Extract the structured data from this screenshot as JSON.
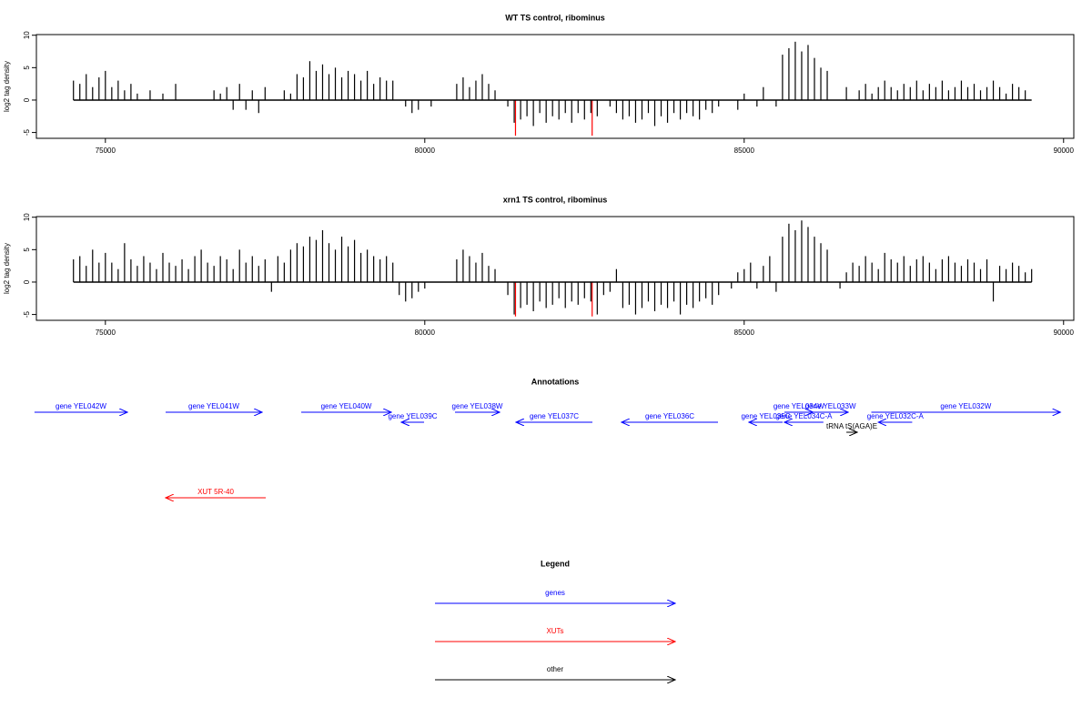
{
  "chart_data": [
    {
      "type": "spike",
      "title": "WT TS control, ribominus",
      "y_label": "log2 tag density",
      "xlim": [
        73920,
        90160
      ],
      "xticks": [
        75000,
        80000,
        85000,
        90000
      ],
      "ylim": [
        -5.9,
        10.1
      ],
      "yticks": [
        -5,
        0,
        5,
        10
      ],
      "x": [
        74500,
        74600,
        74700,
        74800,
        74900,
        75000,
        75100,
        75200,
        75300,
        75400,
        75500,
        75600,
        75700,
        75800,
        75900,
        76000,
        76100,
        76200,
        76300,
        76400,
        76500,
        76600,
        76700,
        76800,
        76900,
        77000,
        77100,
        77200,
        77300,
        77400,
        77500,
        77600,
        77700,
        77800,
        77900,
        78000,
        78100,
        78200,
        78300,
        78400,
        78500,
        78600,
        78700,
        78800,
        78900,
        79000,
        79100,
        79200,
        79300,
        79400,
        79500,
        79600,
        79700,
        79800,
        79900,
        80000,
        80100,
        80200,
        80300,
        80400,
        80500,
        80600,
        80700,
        80800,
        80900,
        81000,
        81100,
        81200,
        81300,
        81400,
        81500,
        81600,
        81700,
        81800,
        81900,
        82000,
        82100,
        82200,
        82300,
        82400,
        82500,
        82600,
        82700,
        82800,
        82900,
        83000,
        83100,
        83200,
        83300,
        83400,
        83500,
        83600,
        83700,
        83800,
        83900,
        84000,
        84100,
        84200,
        84300,
        84400,
        84500,
        84600,
        84700,
        84800,
        84900,
        85000,
        85100,
        85200,
        85300,
        85400,
        85500,
        85600,
        85700,
        85800,
        85900,
        86000,
        86100,
        86200,
        86300,
        86400,
        86500,
        86600,
        86700,
        86800,
        86900,
        87000,
        87100,
        87200,
        87300,
        87400,
        87500,
        87600,
        87700,
        87800,
        87900,
        88000,
        88100,
        88200,
        88300,
        88400,
        88500,
        88600,
        88700,
        88800,
        88900,
        89000,
        89100,
        89200,
        89300,
        89400,
        89500
      ],
      "series": [
        {
          "color": "#000000",
          "values": [
            3,
            2.5,
            4,
            2,
            3.5,
            4.5,
            2,
            3,
            1.5,
            2.5,
            1,
            null,
            1.5,
            null,
            1,
            null,
            2.5,
            null,
            null,
            null,
            null,
            null,
            1.5,
            1,
            2,
            -1.5,
            2.5,
            -1.5,
            1.5,
            -2,
            2,
            null,
            null,
            1.5,
            1,
            4,
            3.5,
            6,
            4.5,
            5.5,
            4,
            5,
            3.5,
            4.5,
            4,
            3,
            4.5,
            2.5,
            3.5,
            3,
            3,
            null,
            -1,
            -2,
            -1.5,
            null,
            -1,
            null,
            null,
            null,
            2.5,
            3.5,
            2,
            3,
            4,
            2.5,
            1.5,
            null,
            -1,
            -3.5,
            -3,
            -2.5,
            -4,
            -2,
            -3.5,
            -2.5,
            -3,
            -2,
            -3.5,
            -2,
            -3,
            -2,
            -2.5,
            null,
            -1,
            -2,
            -3,
            -2.5,
            -3.5,
            -3,
            -2,
            -4,
            -2.5,
            -3.5,
            -2,
            -3,
            -2,
            -2.5,
            -3,
            -1.5,
            -2,
            -1,
            null,
            null,
            -1.5,
            1,
            null,
            -1,
            2,
            null,
            -1,
            7,
            8,
            9,
            7.5,
            8.5,
            6.5,
            5,
            4.5,
            null,
            null,
            2,
            null,
            1.5,
            2.5,
            1,
            2,
            3,
            2,
            1.5,
            2.5,
            2,
            3,
            1.5,
            2.5,
            2,
            3,
            1.5,
            2,
            3,
            2,
            2.5,
            1.5,
            2,
            3,
            2,
            1,
            2.5,
            2,
            1.5,
            null
          ]
        },
        {
          "color": "#ff0000",
          "x": [
            81420,
            82620
          ],
          "values": [
            -5.5,
            -5.5
          ]
        }
      ]
    },
    {
      "type": "spike",
      "title": "xrn1 TS control, ribominus",
      "y_label": "log2 tag density",
      "xlim": [
        73920,
        90160
      ],
      "xticks": [
        75000,
        80000,
        85000,
        90000
      ],
      "ylim": [
        -5.9,
        10.1
      ],
      "yticks": [
        -5,
        0,
        5,
        10
      ],
      "x": [
        74500,
        74600,
        74700,
        74800,
        74900,
        75000,
        75100,
        75200,
        75300,
        75400,
        75500,
        75600,
        75700,
        75800,
        75900,
        76000,
        76100,
        76200,
        76300,
        76400,
        76500,
        76600,
        76700,
        76800,
        76900,
        77000,
        77100,
        77200,
        77300,
        77400,
        77500,
        77600,
        77700,
        77800,
        77900,
        78000,
        78100,
        78200,
        78300,
        78400,
        78500,
        78600,
        78700,
        78800,
        78900,
        79000,
        79100,
        79200,
        79300,
        79400,
        79500,
        79600,
        79700,
        79800,
        79900,
        80000,
        80100,
        80200,
        80300,
        80400,
        80500,
        80600,
        80700,
        80800,
        80900,
        81000,
        81100,
        81200,
        81300,
        81400,
        81500,
        81600,
        81700,
        81800,
        81900,
        82000,
        82100,
        82200,
        82300,
        82400,
        82500,
        82600,
        82700,
        82800,
        82900,
        83000,
        83100,
        83200,
        83300,
        83400,
        83500,
        83600,
        83700,
        83800,
        83900,
        84000,
        84100,
        84200,
        84300,
        84400,
        84500,
        84600,
        84700,
        84800,
        84900,
        85000,
        85100,
        85200,
        85300,
        85400,
        85500,
        85600,
        85700,
        85800,
        85900,
        86000,
        86100,
        86200,
        86300,
        86400,
        86500,
        86600,
        86700,
        86800,
        86900,
        87000,
        87100,
        87200,
        87300,
        87400,
        87500,
        87600,
        87700,
        87800,
        87900,
        88000,
        88100,
        88200,
        88300,
        88400,
        88500,
        88600,
        88700,
        88800,
        88900,
        89000,
        89100,
        89200,
        89300,
        89400,
        89500
      ],
      "series": [
        {
          "color": "#000000",
          "values": [
            3.5,
            4,
            2.5,
            5,
            3,
            4.5,
            3,
            2,
            6,
            3.5,
            2.5,
            4,
            3,
            2,
            4.5,
            3,
            2.5,
            3.5,
            2,
            4,
            5,
            3,
            2.5,
            4,
            3.5,
            2,
            5,
            3,
            4,
            2.5,
            3.5,
            -1.5,
            4,
            3,
            5,
            6,
            5.5,
            7,
            6.5,
            8,
            6,
            5,
            7,
            5.5,
            6.5,
            4.5,
            5,
            4,
            3.5,
            4,
            3,
            -2,
            -3,
            -2.5,
            -1.5,
            -1,
            null,
            null,
            null,
            null,
            3.5,
            5,
            4,
            3,
            4.5,
            2.5,
            2,
            null,
            -2,
            -5,
            -4,
            -3.5,
            -4.5,
            -3,
            -4,
            -3.5,
            -2.5,
            -4,
            -3,
            -3.5,
            -2.5,
            -3,
            -5,
            -2,
            -1.5,
            2,
            -4,
            -3.5,
            -5,
            -4,
            -3,
            -4.5,
            -3.5,
            -4,
            -3,
            -5,
            -3.5,
            -4,
            -3,
            -2.5,
            -3.5,
            -2,
            null,
            -1,
            1.5,
            2,
            3,
            -1,
            2.5,
            4,
            -1.5,
            7,
            9,
            8,
            9.5,
            8.5,
            7,
            6,
            5,
            null,
            -1,
            1.5,
            3,
            2.5,
            4,
            3,
            2,
            4.5,
            3.5,
            3,
            4,
            2.5,
            3.5,
            4,
            3,
            2,
            3.5,
            4,
            3,
            2.5,
            3.5,
            3,
            2,
            3.5,
            -3,
            2.5,
            2,
            3,
            2.5,
            1.5,
            2
          ]
        },
        {
          "color": "#ff0000",
          "x": [
            81420,
            82620
          ],
          "values": [
            -5.3,
            -5.3
          ]
        }
      ]
    }
  ],
  "annotations": {
    "title": "Annotations",
    "items": [
      {
        "label": "gene YEL042W",
        "start": 73890,
        "end": 75345,
        "strand": "+",
        "color": "#0000ff",
        "row": 0
      },
      {
        "label": "gene YEL041W",
        "start": 75943,
        "end": 77453,
        "strand": "+",
        "color": "#0000ff",
        "row": 0
      },
      {
        "label": "gene YEL040W",
        "start": 78066,
        "end": 79476,
        "strand": "+",
        "color": "#0000ff",
        "row": 0
      },
      {
        "label": "gene YEL039C",
        "start": 79633,
        "end": 79989,
        "strand": "-",
        "color": "#0000ff",
        "row": 1
      },
      {
        "label": "gene YEL038W",
        "start": 80473,
        "end": 81171,
        "strand": "+",
        "color": "#0000ff",
        "row": 0
      },
      {
        "label": "gene YEL037C",
        "start": 81428,
        "end": 82624,
        "strand": "-",
        "color": "#0000ff",
        "row": 1
      },
      {
        "label": "gene YEL036C",
        "start": 83080,
        "end": 84590,
        "strand": "-",
        "color": "#0000ff",
        "row": 1
      },
      {
        "label": "gene YEL035C",
        "start": 85074,
        "end": 85602,
        "strand": "-",
        "color": "#0000ff",
        "row": 1
      },
      {
        "label": "gene YEL034W",
        "start": 85630,
        "end": 86080,
        "strand": "+",
        "color": "#0000ff",
        "row": 0
      },
      {
        "label": "gene YEL033W",
        "start": 86072,
        "end": 86628,
        "strand": "+",
        "color": "#0000ff",
        "row": 0
      },
      {
        "label": "gene YEL034C-A",
        "start": 85630,
        "end": 86240,
        "strand": "-",
        "color": "#0000ff",
        "row": 1
      },
      {
        "label": "tRNA tS(AGA)E",
        "start": 86600,
        "end": 86770,
        "strand": "+",
        "color": "#000000",
        "row": 2
      },
      {
        "label": "gene YEL032C-A",
        "start": 87100,
        "end": 87630,
        "strand": "-",
        "color": "#0000ff",
        "row": 1
      },
      {
        "label": "gene YEL032W",
        "start": 86990,
        "end": 89950,
        "strand": "+",
        "color": "#0000ff",
        "row": 0
      },
      {
        "label": "XUT 5R-40",
        "start": 75943,
        "end": 77510,
        "strand": "-",
        "color": "#ff0000",
        "row": 3
      }
    ]
  },
  "legend": {
    "title": "Legend",
    "items": [
      {
        "label": "genes",
        "color": "#0000ff"
      },
      {
        "label": "XUTs",
        "color": "#ff0000"
      },
      {
        "label": "other",
        "color": "#000000"
      }
    ]
  }
}
